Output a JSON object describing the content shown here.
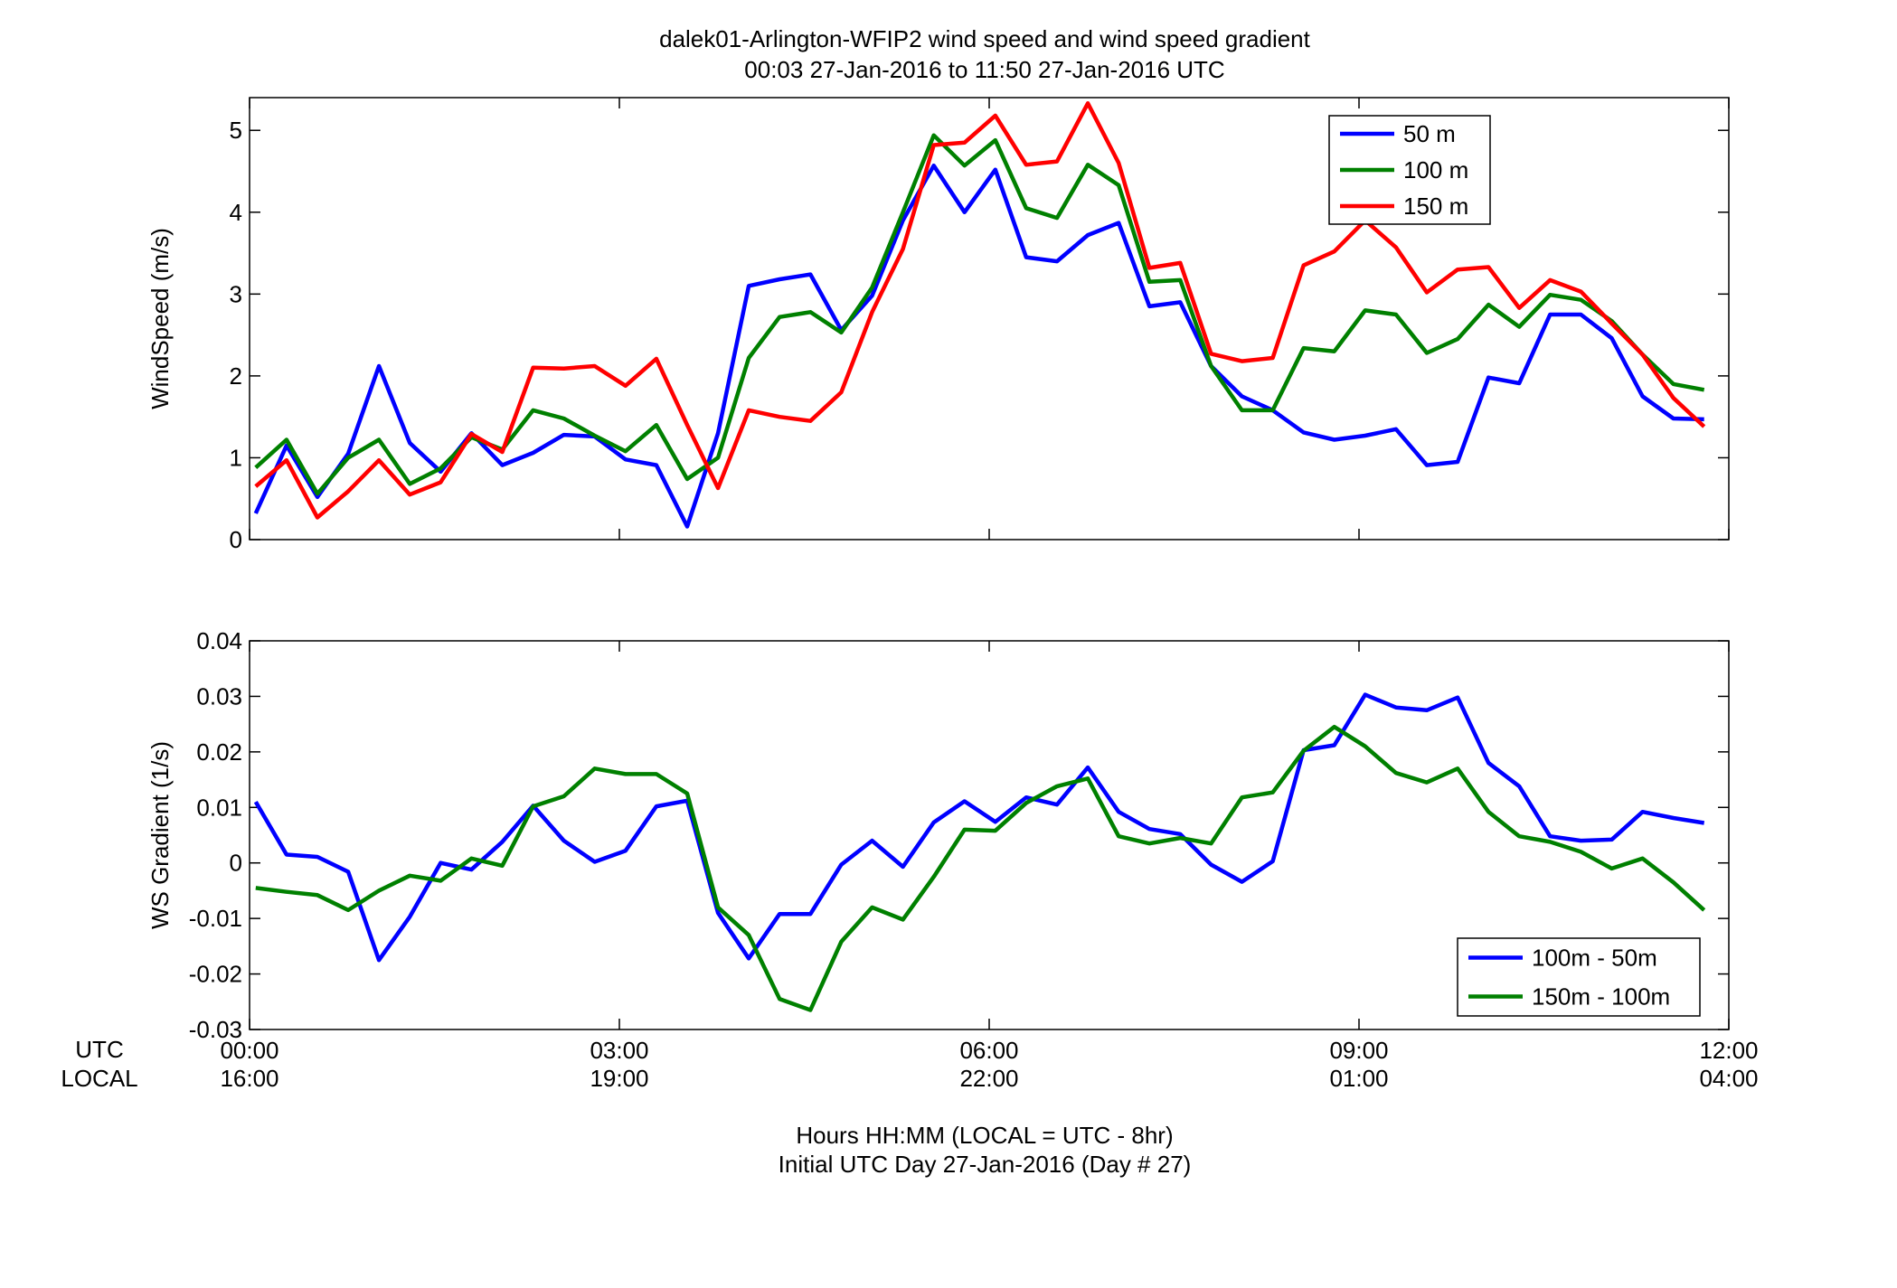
{
  "title_line1": "dalek01-Arlington-WFIP2  wind speed and wind speed gradient",
  "title_line2": "00:03 27-Jan-2016 to 11:50 27-Jan-2016  UTC",
  "row_label_utc": "UTC",
  "row_label_local": "LOCAL",
  "xlabel_line1": "Hours HH:MM  (LOCAL = UTC - 8hr)",
  "xlabel_line2": "Initial UTC Day 27-Jan-2016 (Day # 27)",
  "chart_data": [
    {
      "type": "line",
      "ylabel": "WindSpeed (m/s)",
      "xlim": [
        0,
        12
      ],
      "ylim": [
        0,
        5.4
      ],
      "yticks": [
        0,
        1,
        2,
        3,
        4,
        5
      ],
      "ytick_labels": [
        "0",
        "1",
        "2",
        "3",
        "4",
        "5"
      ],
      "xticks": [
        0,
        3,
        6,
        9,
        12
      ],
      "xtick_labels_utc": [
        "00:00",
        "03:00",
        "06:00",
        "09:00",
        "12:00"
      ],
      "xtick_labels_local": [
        "16:00",
        "19:00",
        "22:00",
        "01:00",
        "04:00"
      ],
      "legend_position": "top-right",
      "x": [
        0.05,
        0.3,
        0.55,
        0.8,
        1.05,
        1.3,
        1.55,
        1.8,
        2.05,
        2.3,
        2.55,
        2.8,
        3.05,
        3.3,
        3.55,
        3.8,
        4.05,
        4.3,
        4.55,
        4.8,
        5.05,
        5.3,
        5.55,
        5.8,
        6.05,
        6.3,
        6.55,
        6.8,
        7.05,
        7.3,
        7.55,
        7.8,
        8.05,
        8.3,
        8.55,
        8.8,
        9.05,
        9.3,
        9.55,
        9.8,
        10.05,
        10.3,
        10.55,
        10.8,
        11.05,
        11.3,
        11.55,
        11.8
      ],
      "series": [
        {
          "name": "50 m",
          "color": "#0000ff",
          "values": [
            0.32,
            1.15,
            0.52,
            1.05,
            2.12,
            1.18,
            0.83,
            1.3,
            0.91,
            1.06,
            1.28,
            1.26,
            0.98,
            0.91,
            0.16,
            1.3,
            3.1,
            3.18,
            3.24,
            2.56,
            2.98,
            3.9,
            4.57,
            4.0,
            4.52,
            3.45,
            3.4,
            3.72,
            3.87,
            2.85,
            2.9,
            2.12,
            1.75,
            1.58,
            1.31,
            1.22,
            1.27,
            1.35,
            0.91,
            0.95,
            1.98,
            1.91,
            2.75,
            2.75,
            2.46,
            1.75,
            1.48,
            1.47
          ]
        },
        {
          "name": "100 m",
          "color": "#008000",
          "values": [
            0.88,
            1.22,
            0.56,
            1.0,
            1.22,
            0.68,
            0.87,
            1.25,
            1.1,
            1.58,
            1.48,
            1.27,
            1.08,
            1.4,
            0.74,
            1.0,
            2.22,
            2.72,
            2.78,
            2.53,
            3.08,
            4.0,
            4.94,
            4.57,
            4.88,
            4.05,
            3.93,
            4.58,
            4.33,
            3.15,
            3.17,
            2.12,
            1.58,
            1.58,
            2.34,
            2.3,
            2.8,
            2.75,
            2.28,
            2.45,
            2.87,
            2.6,
            2.99,
            2.93,
            2.67,
            2.26,
            1.9,
            1.83
          ]
        },
        {
          "name": "150 m",
          "color": "#ff0000",
          "values": [
            0.65,
            0.97,
            0.27,
            0.59,
            0.97,
            0.55,
            0.7,
            1.29,
            1.07,
            2.1,
            2.09,
            2.12,
            1.88,
            2.21,
            1.4,
            0.63,
            1.58,
            1.5,
            1.45,
            1.8,
            2.78,
            3.55,
            4.82,
            4.85,
            5.18,
            4.58,
            4.62,
            5.33,
            4.6,
            3.32,
            3.38,
            2.27,
            2.18,
            2.22,
            3.35,
            3.52,
            3.9,
            3.57,
            3.02,
            3.3,
            3.33,
            2.83,
            3.17,
            3.03,
            2.64,
            2.26,
            1.73,
            1.38
          ]
        }
      ]
    },
    {
      "type": "line",
      "ylabel": "WS Gradient (1/s)",
      "xlim": [
        0,
        12
      ],
      "ylim": [
        -0.03,
        0.04
      ],
      "yticks": [
        -0.03,
        -0.02,
        -0.01,
        0,
        0.01,
        0.02,
        0.03,
        0.04
      ],
      "ytick_labels": [
        "-0.03",
        "-0.02",
        "-0.01",
        "0",
        "0.01",
        "0.02",
        "0.03",
        "0.04"
      ],
      "xticks": [
        0,
        3,
        6,
        9,
        12
      ],
      "xtick_labels_utc": [
        "00:00",
        "03:00",
        "06:00",
        "09:00",
        "12:00"
      ],
      "xtick_labels_local": [
        "16:00",
        "19:00",
        "22:00",
        "01:00",
        "04:00"
      ],
      "legend_position": "bottom-right",
      "x": [
        0.05,
        0.3,
        0.55,
        0.8,
        1.05,
        1.3,
        1.55,
        1.8,
        2.05,
        2.3,
        2.55,
        2.8,
        3.05,
        3.3,
        3.55,
        3.8,
        4.05,
        4.3,
        4.55,
        4.8,
        5.05,
        5.3,
        5.55,
        5.8,
        6.05,
        6.3,
        6.55,
        6.8,
        7.05,
        7.3,
        7.55,
        7.8,
        8.05,
        8.3,
        8.55,
        8.8,
        9.05,
        9.3,
        9.55,
        9.8,
        10.05,
        10.3,
        10.55,
        10.8,
        11.05,
        11.3,
        11.55,
        11.8
      ],
      "series": [
        {
          "name": "100m - 50m",
          "color": "#0000ff",
          "values": [
            0.011,
            0.0015,
            0.0011,
            -0.0016,
            -0.0175,
            -0.0097,
            0.0,
            -0.0012,
            0.0038,
            0.0103,
            0.004,
            0.0002,
            0.0022,
            0.0102,
            0.0112,
            -0.009,
            -0.0172,
            -0.0092,
            -0.0092,
            -0.0003,
            0.004,
            -0.0007,
            0.0073,
            0.0111,
            0.0074,
            0.0118,
            0.0105,
            0.0172,
            0.0092,
            0.0061,
            0.0052,
            -0.0003,
            -0.0034,
            0.0003,
            0.0203,
            0.0212,
            0.0303,
            0.028,
            0.0275,
            0.0298,
            0.018,
            0.0138,
            0.0048,
            0.004,
            0.0042,
            0.0092,
            0.0081,
            0.0072
          ]
        },
        {
          "name": "150m - 100m",
          "color": "#008000",
          "values": [
            -0.0045,
            -0.0052,
            -0.0058,
            -0.0085,
            -0.005,
            -0.0023,
            -0.0032,
            0.0008,
            -0.0005,
            0.0102,
            0.012,
            0.017,
            0.016,
            0.016,
            0.0125,
            -0.008,
            -0.013,
            -0.0245,
            -0.0265,
            -0.0142,
            -0.008,
            -0.0102,
            -0.0025,
            0.006,
            0.0058,
            0.0108,
            0.0138,
            0.0152,
            0.0048,
            0.0035,
            0.0045,
            0.0035,
            0.0118,
            0.0127,
            0.0202,
            0.0245,
            0.021,
            0.0162,
            0.0145,
            0.017,
            0.0092,
            0.0048,
            0.0038,
            0.002,
            -0.001,
            0.0008,
            -0.0035,
            -0.0085
          ]
        }
      ]
    }
  ]
}
